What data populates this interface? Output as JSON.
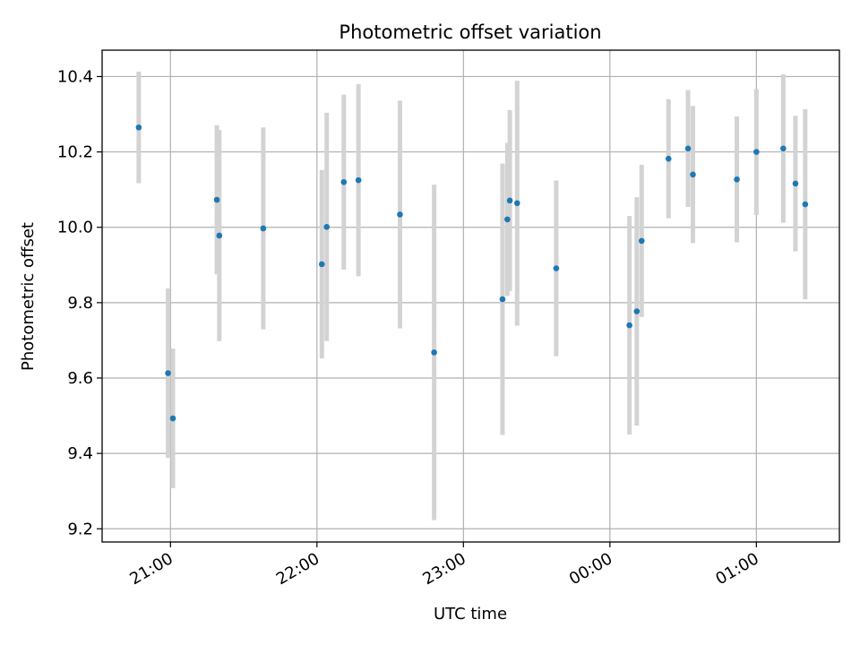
{
  "chart_data": {
    "type": "scatter",
    "title": "Photometric offset variation",
    "xlabel": "UTC time",
    "ylabel": "Photometric offset",
    "grid": true,
    "xlim": [
      "20:32",
      "01:34"
    ],
    "ylim": [
      9.165,
      10.47
    ],
    "x_ticks": [
      "21:00",
      "22:00",
      "23:00",
      "00:00",
      "01:00"
    ],
    "y_ticks": [
      "9.2",
      "9.4",
      "9.6",
      "9.8",
      "10.0",
      "10.2",
      "10.4"
    ],
    "colors": {
      "marker": "#1f77b4",
      "errorbar": "#d3d3d3",
      "grid": "#b0b0b0"
    },
    "points": [
      {
        "x": "20:47",
        "y": 10.265,
        "err": 0.148
      },
      {
        "x": "20:59",
        "y": 9.613,
        "err": 0.225
      },
      {
        "x": "21:01",
        "y": 9.493,
        "err": 0.185
      },
      {
        "x": "21:19",
        "y": 10.073,
        "err": 0.198
      },
      {
        "x": "21:20",
        "y": 9.978,
        "err": 0.28
      },
      {
        "x": "21:38",
        "y": 9.997,
        "err": 0.268
      },
      {
        "x": "22:02",
        "y": 9.902,
        "err": 0.25
      },
      {
        "x": "22:04",
        "y": 10.001,
        "err": 0.303
      },
      {
        "x": "22:11",
        "y": 10.12,
        "err": 0.232
      },
      {
        "x": "22:17",
        "y": 10.125,
        "err": 0.255
      },
      {
        "x": "22:34",
        "y": 10.034,
        "err": 0.302
      },
      {
        "x": "22:48",
        "y": 9.668,
        "err": 0.445
      },
      {
        "x": "23:16",
        "y": 9.809,
        "err": 0.36
      },
      {
        "x": "23:18",
        "y": 10.021,
        "err": 0.203
      },
      {
        "x": "23:19",
        "y": 10.071,
        "err": 0.24
      },
      {
        "x": "23:22",
        "y": 10.064,
        "err": 0.325
      },
      {
        "x": "23:38",
        "y": 9.891,
        "err": 0.233
      },
      {
        "x": "00:08",
        "y": 9.74,
        "err": 0.29
      },
      {
        "x": "00:11",
        "y": 9.777,
        "err": 0.303
      },
      {
        "x": "00:13",
        "y": 9.964,
        "err": 0.202
      },
      {
        "x": "00:24",
        "y": 10.182,
        "err": 0.158
      },
      {
        "x": "00:32",
        "y": 10.209,
        "err": 0.155
      },
      {
        "x": "00:34",
        "y": 10.14,
        "err": 0.182
      },
      {
        "x": "00:52",
        "y": 10.127,
        "err": 0.167
      },
      {
        "x": "01:00",
        "y": 10.2,
        "err": 0.167
      },
      {
        "x": "01:11",
        "y": 10.209,
        "err": 0.197
      },
      {
        "x": "01:16",
        "y": 10.116,
        "err": 0.18
      },
      {
        "x": "01:20",
        "y": 10.061,
        "err": 0.252
      }
    ]
  }
}
